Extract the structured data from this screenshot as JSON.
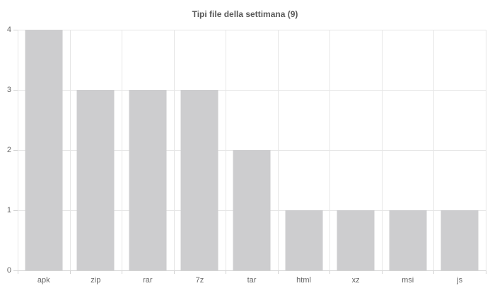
{
  "chart_data": {
    "type": "bar",
    "title": "Tipi file della settimana (9)",
    "categories": [
      "apk",
      "zip",
      "rar",
      "7z",
      "tar",
      "html",
      "xz",
      "msi",
      "js"
    ],
    "values": [
      4,
      3,
      3,
      3,
      2,
      1,
      1,
      1,
      1
    ],
    "xlabel": "",
    "ylabel": "",
    "ylim": [
      0,
      4
    ],
    "yticks": [
      0,
      1,
      2,
      3,
      4
    ],
    "grid": true,
    "legend_position": "none",
    "colors": {
      "bar": "#cdcdcf",
      "gridline": "#e6e6e6",
      "axis_line": "#d4d4d4",
      "tick": "#d4d4d4",
      "axis_label": "#666666",
      "title": "#595959",
      "background": "#ffffff"
    }
  }
}
